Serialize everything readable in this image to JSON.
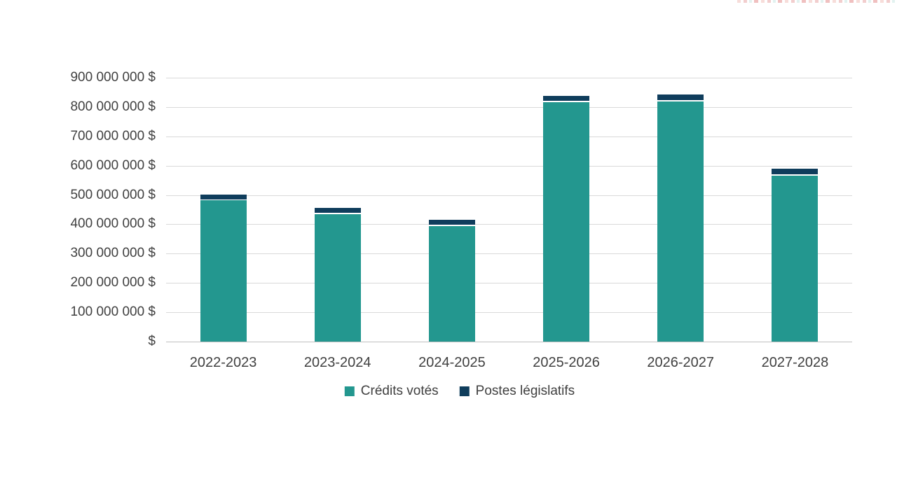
{
  "chart_data": {
    "type": "bar",
    "stacked": true,
    "title": "",
    "xlabel": "",
    "ylabel": "",
    "categories": [
      "2022-2023",
      "2023-2024",
      "2024-2025",
      "2025-2026",
      "2026-2027",
      "2027-2028"
    ],
    "series": [
      {
        "name": "Crédits votés",
        "color": "#23978F",
        "values": [
          482000000,
          435000000,
          394000000,
          817000000,
          819000000,
          566000000
        ]
      },
      {
        "name": "Postes législatifs",
        "color": "#0F3D5C",
        "values": [
          15000000,
          18000000,
          18000000,
          18000000,
          20000000,
          19000000
        ]
      }
    ],
    "ylim": [
      0,
      900000000
    ],
    "y_ticks": [
      "900 000 000 $",
      "800 000 000 $",
      "700 000 000 $",
      "600 000 000 $",
      "500 000 000 $",
      "400 000 000 $",
      "300 000 000 $",
      "200 000 000 $",
      "100 000 000 $",
      "$"
    ],
    "y_tick_values": [
      900000000,
      800000000,
      700000000,
      600000000,
      500000000,
      400000000,
      300000000,
      200000000,
      100000000,
      0
    ],
    "grid": true,
    "legend_position": "bottom"
  },
  "colors": {
    "background": "#ffffff",
    "gridline": "#d9d9d9",
    "baseline": "#bfbfbf",
    "axis_text": "#404040",
    "teal": "#23978F",
    "navy": "#0F3D5C"
  }
}
